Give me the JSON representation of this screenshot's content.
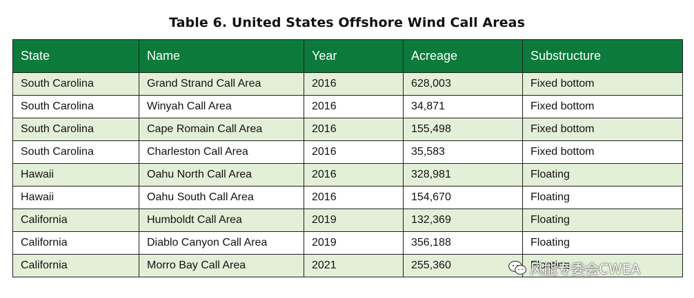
{
  "title": "Table 6. United States Offshore Wind Call Areas",
  "columns": [
    "State",
    "Name",
    "Year",
    "Acreage",
    "Substructure"
  ],
  "rows": [
    [
      "South Carolina",
      "Grand Strand Call Area",
      "2016",
      "628,003",
      "Fixed bottom"
    ],
    [
      "South Carolina",
      "Winyah Call Area",
      "2016",
      "34,871",
      "Fixed bottom"
    ],
    [
      "South Carolina",
      "Cape Romain Call Area",
      "2016",
      "155,498",
      "Fixed bottom"
    ],
    [
      "South Carolina",
      "Charleston Call Area",
      "2016",
      "35,583",
      "Fixed bottom"
    ],
    [
      "Hawaii",
      "Oahu North Call Area",
      "2016",
      "328,981",
      "Floating"
    ],
    [
      "Hawaii",
      "Oahu South Call Area",
      "2016",
      "154,670",
      "Floating"
    ],
    [
      "California",
      "Humboldt Call Area",
      "2019",
      "132,369",
      "Floating"
    ],
    [
      "California",
      "Diablo Canyon Call Area",
      "2019",
      "356,188",
      "Floating"
    ],
    [
      "California",
      "Morro Bay Call Area",
      "2021",
      "255,360",
      "Floating"
    ]
  ],
  "colors": {
    "header_bg": "#0b7a3b",
    "header_text": "#ffffff",
    "stripe": "#e4efd8",
    "border": "#1e1e1e"
  },
  "watermark": {
    "icon": "wechat-icon",
    "text": "风能专委会CWEA"
  }
}
